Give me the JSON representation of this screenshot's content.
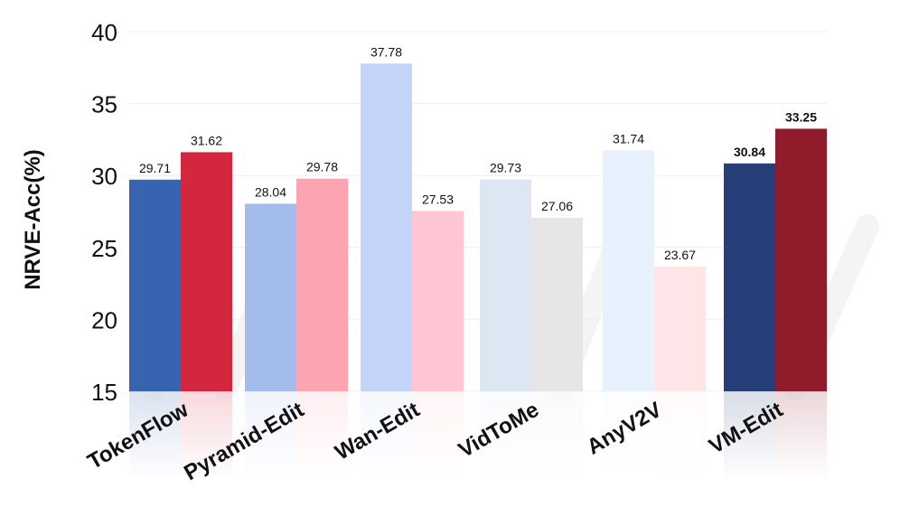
{
  "chart_data": {
    "type": "bar",
    "ylabel": "NRVE-Acc(%)",
    "ylim": [
      15,
      40
    ],
    "yticks": [
      15,
      20,
      25,
      30,
      35,
      40
    ],
    "grid": true,
    "categories": [
      "TokenFlow",
      "Pyramid-Edit",
      "Wan-Edit",
      "VidToMe",
      "AnyV2V",
      "VM-Edit"
    ],
    "series": [
      {
        "values": [
          29.71,
          28.04,
          37.78,
          29.73,
          31.74,
          30.84
        ],
        "colors": [
          "#3763b0",
          "#a3bcec",
          "#c3d4f8",
          "#dde6f3",
          "#e8f2fe",
          "#263f78"
        ]
      },
      {
        "values": [
          31.62,
          29.78,
          27.53,
          27.06,
          23.67,
          33.25
        ],
        "colors": [
          "#d3273d",
          "#fca4b0",
          "#fec6d2",
          "#e6e6e6",
          "#fde5e8",
          "#8f1b2b"
        ]
      }
    ],
    "data_labels": [
      [
        "29.71",
        "28.04",
        "37.78",
        "29.73",
        "31.74",
        "30.84"
      ],
      [
        "31.62",
        "29.78",
        "27.53",
        "27.06",
        "23.67",
        "33.25"
      ]
    ],
    "highlighted_category": "VM-Edit"
  }
}
